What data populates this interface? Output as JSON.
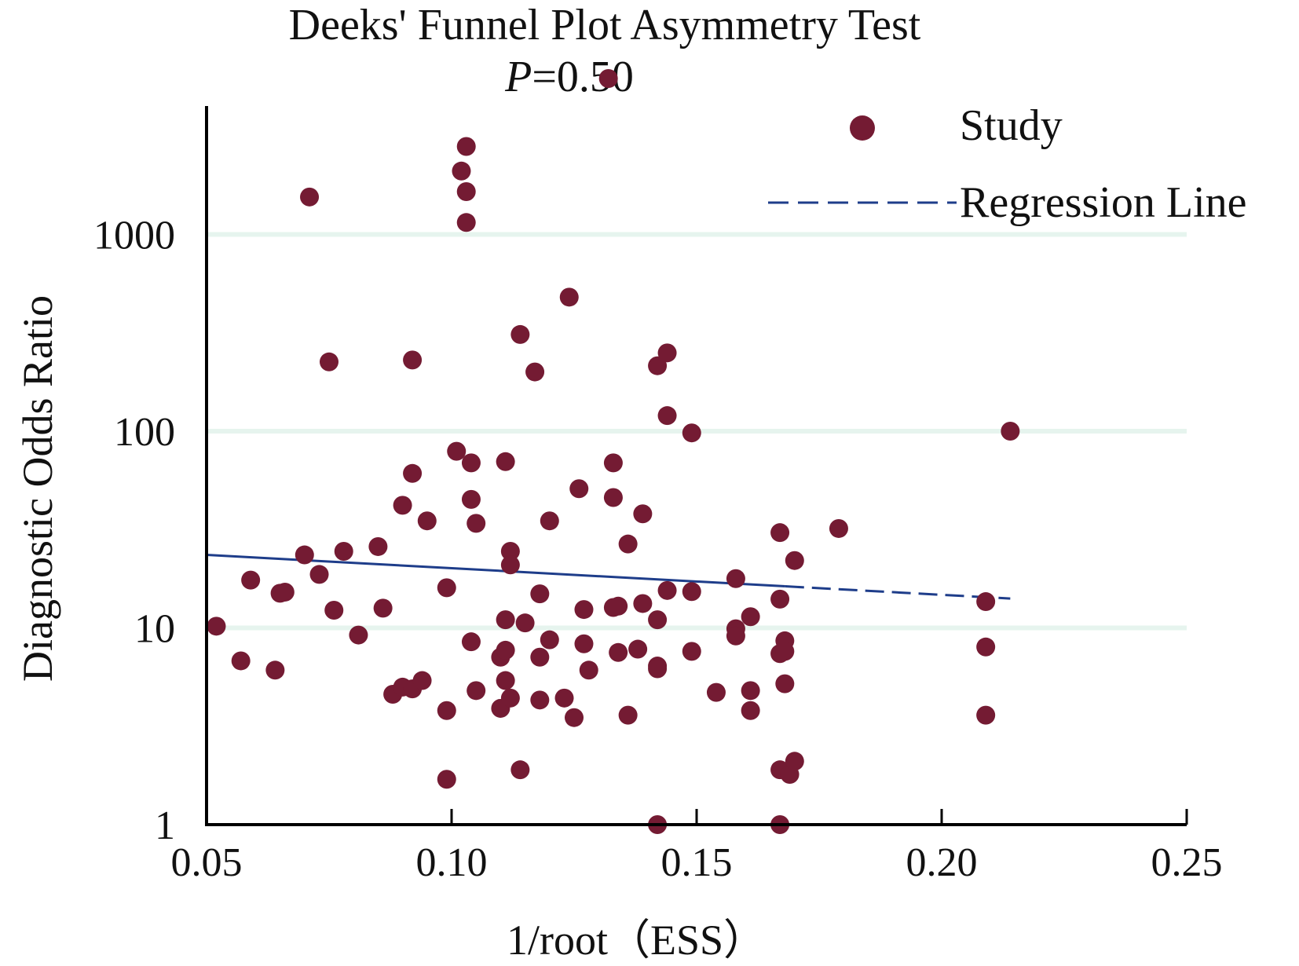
{
  "chart_data": {
    "type": "scatter",
    "title": "Deeks' Funnel Plot Asymmetry Test",
    "subtitle_prefix": "P",
    "subtitle_value": "=0.50",
    "xlabel": "1/root（ESS）",
    "ylabel": "Diagnostic Odds Ratio",
    "xlim": [
      0.05,
      0.25
    ],
    "ylim": [
      1,
      10000
    ],
    "y_scale": "log",
    "x_ticks": [
      "0.05",
      "0.10",
      "0.15",
      "0.20",
      "0.25"
    ],
    "y_ticks": [
      "1",
      "10",
      "100",
      "1000"
    ],
    "grid": "horizontal at 10, 100, 1000",
    "legend": {
      "position": "top-right",
      "study_label": "Study",
      "regression_label": "Regression Line"
    },
    "colors": {
      "points": "#741b33",
      "regression": "#1e3d8a",
      "grid": "#e6f4ee",
      "axis": "#000000"
    },
    "regression_line": {
      "x": [
        0.05,
        0.214
      ],
      "y": [
        23.5,
        14.1
      ]
    },
    "series": [
      {
        "name": "Study",
        "points": [
          [
            0.052,
            10.2
          ],
          [
            0.057,
            6.8
          ],
          [
            0.059,
            17.5
          ],
          [
            0.064,
            6.1
          ],
          [
            0.065,
            15.0
          ],
          [
            0.066,
            15.2
          ],
          [
            0.07,
            23.5
          ],
          [
            0.071,
            1550
          ],
          [
            0.073,
            18.7
          ],
          [
            0.075,
            225
          ],
          [
            0.076,
            12.3
          ],
          [
            0.078,
            24.5
          ],
          [
            0.081,
            9.2
          ],
          [
            0.085,
            25.9
          ],
          [
            0.086,
            12.6
          ],
          [
            0.088,
            4.6
          ],
          [
            0.09,
            5.0
          ],
          [
            0.09,
            42
          ],
          [
            0.092,
            230
          ],
          [
            0.092,
            61
          ],
          [
            0.092,
            4.9
          ],
          [
            0.094,
            5.4
          ],
          [
            0.095,
            35
          ],
          [
            0.099,
            16.0
          ],
          [
            0.099,
            3.8
          ],
          [
            0.099,
            1.7
          ],
          [
            0.101,
            79
          ],
          [
            0.102,
            2100
          ],
          [
            0.103,
            2800
          ],
          [
            0.103,
            1650
          ],
          [
            0.103,
            1150
          ],
          [
            0.104,
            8.5
          ],
          [
            0.104,
            45
          ],
          [
            0.104,
            69
          ],
          [
            0.105,
            34
          ],
          [
            0.105,
            4.8
          ],
          [
            0.11,
            7.1
          ],
          [
            0.11,
            3.9
          ],
          [
            0.111,
            70
          ],
          [
            0.111,
            11.0
          ],
          [
            0.112,
            24.5
          ],
          [
            0.112,
            20.9
          ],
          [
            0.111,
            7.7
          ],
          [
            0.111,
            5.4
          ],
          [
            0.112,
            4.4
          ],
          [
            0.114,
            1.9
          ],
          [
            0.114,
            310
          ],
          [
            0.115,
            10.6
          ],
          [
            0.117,
            200
          ],
          [
            0.118,
            14.9
          ],
          [
            0.118,
            7.1
          ],
          [
            0.118,
            4.3
          ],
          [
            0.12,
            8.7
          ],
          [
            0.12,
            35
          ],
          [
            0.123,
            4.4
          ],
          [
            0.124,
            480
          ],
          [
            0.125,
            3.5
          ],
          [
            0.126,
            51
          ],
          [
            0.127,
            12.4
          ],
          [
            0.127,
            8.3
          ],
          [
            0.128,
            6.1
          ],
          [
            0.132,
            6200
          ],
          [
            0.133,
            69
          ],
          [
            0.133,
            46
          ],
          [
            0.133,
            12.7
          ],
          [
            0.134,
            12.9
          ],
          [
            0.134,
            7.5
          ],
          [
            0.136,
            26.7
          ],
          [
            0.136,
            3.6
          ],
          [
            0.138,
            7.8
          ],
          [
            0.139,
            13.3
          ],
          [
            0.139,
            38
          ],
          [
            0.142,
            215
          ],
          [
            0.142,
            11.0
          ],
          [
            0.142,
            6.4
          ],
          [
            0.142,
            6.2
          ],
          [
            0.142,
            1.0
          ],
          [
            0.144,
            250
          ],
          [
            0.144,
            120
          ],
          [
            0.144,
            15.5
          ],
          [
            0.149,
            98
          ],
          [
            0.149,
            15.3
          ],
          [
            0.149,
            7.6
          ],
          [
            0.154,
            4.7
          ],
          [
            0.158,
            17.8
          ],
          [
            0.158,
            9.9
          ],
          [
            0.158,
            9.1
          ],
          [
            0.161,
            11.4
          ],
          [
            0.161,
            4.8
          ],
          [
            0.161,
            3.8
          ],
          [
            0.167,
            30.5
          ],
          [
            0.167,
            14.0
          ],
          [
            0.167,
            7.4
          ],
          [
            0.167,
            1.9
          ],
          [
            0.167,
            1.0
          ],
          [
            0.168,
            8.6
          ],
          [
            0.168,
            7.6
          ],
          [
            0.168,
            5.2
          ],
          [
            0.169,
            1.8
          ],
          [
            0.17,
            22.0
          ],
          [
            0.17,
            2.1
          ],
          [
            0.179,
            32.0
          ],
          [
            0.209,
            13.6
          ],
          [
            0.209,
            8.0
          ],
          [
            0.209,
            3.6
          ],
          [
            0.214,
            100
          ]
        ]
      }
    ]
  }
}
